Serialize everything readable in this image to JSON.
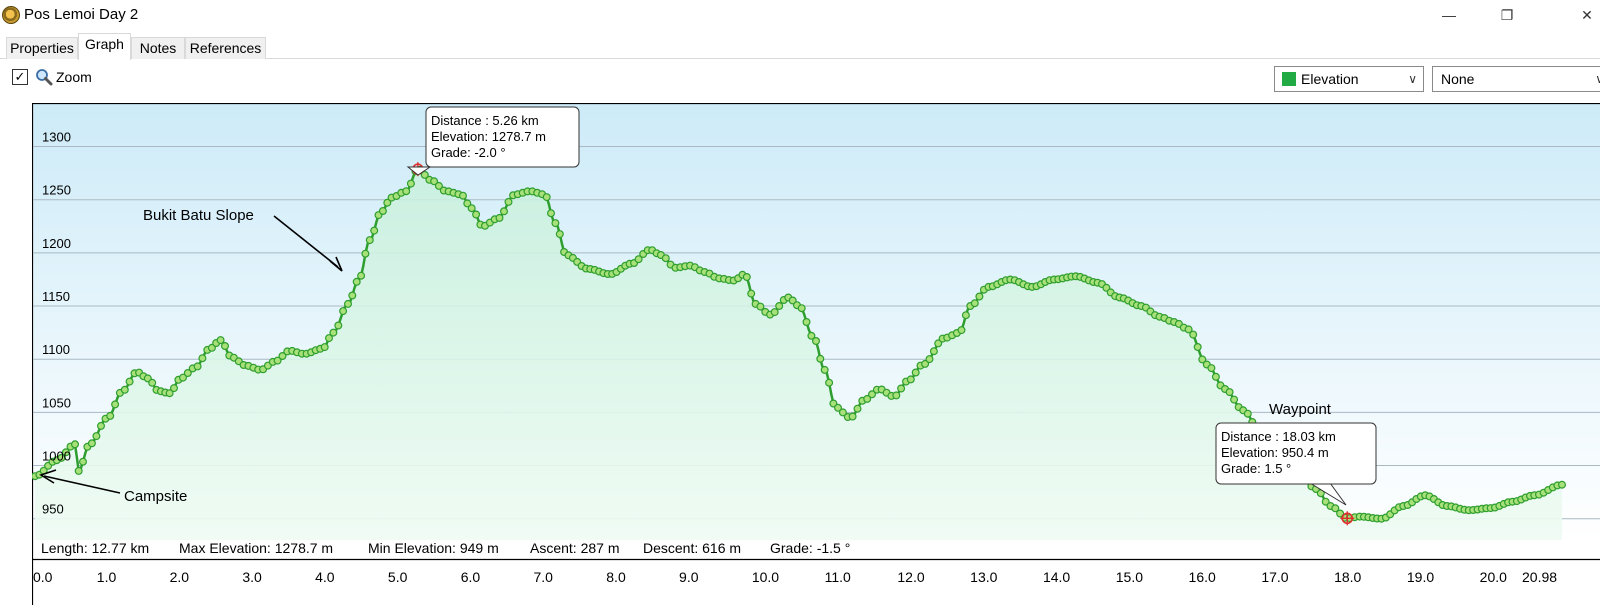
{
  "window": {
    "title": "Pos Lemoi Day 2",
    "minimize_glyph": "—",
    "restore_glyph": "❐",
    "close_glyph": "✕"
  },
  "tabs": [
    {
      "label": "Properties",
      "active": false
    },
    {
      "label": "Graph",
      "active": true
    },
    {
      "label": "Notes",
      "active": false
    },
    {
      "label": "References",
      "active": false
    }
  ],
  "toolbar": {
    "zoom_checked": true,
    "zoom_label": "Zoom",
    "checkbox_glyph": "✓",
    "primary_select": {
      "value": "Elevation",
      "swatch_color": "#22aa44"
    },
    "secondary_select": {
      "value": "None"
    },
    "dropdown_glyph": "∨"
  },
  "stats": {
    "length": "Length: 12.77 km",
    "max_elevation": "Max Elevation: 1278.7 m",
    "min_elevation": "Min Elevation: 949 m",
    "ascent": "Ascent: 287 m",
    "descent": "Descent: 616 m",
    "grade": "Grade: -1.5 °"
  },
  "annotations": {
    "bukit_batu": "Bukit Batu Slope",
    "campsite": "Campsite",
    "waypoint": "Waypoint"
  },
  "tooltips": [
    {
      "distance": "Distance  : 5.26 km",
      "elevation": "Elevation: 1278.7 m",
      "grade": "Grade: -2.0 °"
    },
    {
      "distance": "Distance  : 18.03 km",
      "elevation": "Elevation: 950.4 m",
      "grade": "Grade: 1.5 °"
    }
  ],
  "chart_data": {
    "type": "line",
    "xlabel": "",
    "ylabel": "",
    "xlim": [
      0,
      20.98
    ],
    "ylim": [
      930,
      1340
    ],
    "x_ticks": [
      0,
      1,
      2,
      3,
      4,
      5,
      6,
      7,
      8,
      9,
      10,
      11,
      12,
      13,
      14,
      15,
      16,
      17,
      18,
      19,
      20
    ],
    "x_tick_labels": [
      "0.0",
      "1.0",
      "2.0",
      "3.0",
      "4.0",
      "5.0",
      "6.0",
      "7.0",
      "8.0",
      "9.0",
      "10.0",
      "11.0",
      "12.0",
      "13.0",
      "14.0",
      "15.0",
      "16.0",
      "17.0",
      "18.0",
      "19.0",
      "20.0"
    ],
    "x_end_label": "20.98",
    "y_ticks": [
      950,
      1000,
      1050,
      1100,
      1150,
      1200,
      1250,
      1300
    ],
    "y_tick_labels": [
      "950",
      "1000",
      "1050",
      "1100",
      "1150",
      "1200",
      "1250",
      "1300"
    ],
    "grid": true,
    "line_color": "#2e9e2e",
    "marker_fill": "#a8e07a",
    "highlight_color": "#e03030",
    "series": [
      {
        "x": [
          0,
          0.3,
          0.55,
          0.6,
          0.75,
          1.0,
          1.2,
          1.4,
          1.55,
          1.7,
          1.85,
          2.0,
          2.2,
          2.4,
          2.55,
          2.7,
          2.9,
          3.1,
          3.3,
          3.5,
          3.7,
          3.95,
          4.1,
          4.3,
          4.45,
          4.6,
          4.75,
          4.9,
          5.1,
          5.26,
          5.45,
          5.65,
          5.85,
          6.0,
          6.15,
          6.35,
          6.6,
          6.8,
          7.0,
          7.15,
          7.3,
          7.6,
          7.9,
          8.2,
          8.45,
          8.6,
          8.8,
          9.0,
          9.2,
          9.4,
          9.6,
          9.75,
          9.9,
          10.1,
          10.35,
          10.5,
          10.7,
          10.85,
          11.0,
          11.2,
          11.4,
          11.6,
          11.8,
          12.0,
          12.2,
          12.5,
          12.7,
          12.85,
          13.1,
          13.4,
          13.7,
          14.0,
          14.3,
          14.6,
          14.9,
          15.2,
          15.45,
          15.65,
          15.85,
          16.1,
          16.35,
          16.6,
          16.85,
          17.1,
          17.35,
          17.6,
          17.8,
          18.03,
          18.2,
          18.5,
          18.8,
          19.1,
          19.4,
          19.7,
          20.0,
          20.3,
          20.6,
          20.98
        ],
        "y": [
          990,
          1005,
          1020,
          995,
          1020,
          1045,
          1070,
          1088,
          1082,
          1070,
          1068,
          1082,
          1092,
          1110,
          1118,
          1102,
          1094,
          1090,
          1098,
          1108,
          1105,
          1110,
          1125,
          1152,
          1175,
          1212,
          1238,
          1252,
          1258,
          1278.7,
          1268,
          1258,
          1255,
          1242,
          1225,
          1232,
          1255,
          1258,
          1255,
          1228,
          1198,
          1185,
          1180,
          1190,
          1203,
          1198,
          1186,
          1188,
          1182,
          1176,
          1174,
          1180,
          1152,
          1142,
          1158,
          1150,
          1120,
          1090,
          1055,
          1045,
          1062,
          1072,
          1065,
          1080,
          1095,
          1120,
          1125,
          1150,
          1168,
          1175,
          1168,
          1175,
          1178,
          1172,
          1158,
          1150,
          1140,
          1135,
          1128,
          1095,
          1072,
          1052,
          1030,
          1015,
          995,
          978,
          962,
          950.4,
          952,
          950,
          962,
          972,
          962,
          958,
          960,
          966,
          972,
          982
        ]
      }
    ],
    "highlighted_points": [
      {
        "x": 5.26,
        "y": 1278.7
      },
      {
        "x": 18.03,
        "y": 950.4
      }
    ]
  }
}
